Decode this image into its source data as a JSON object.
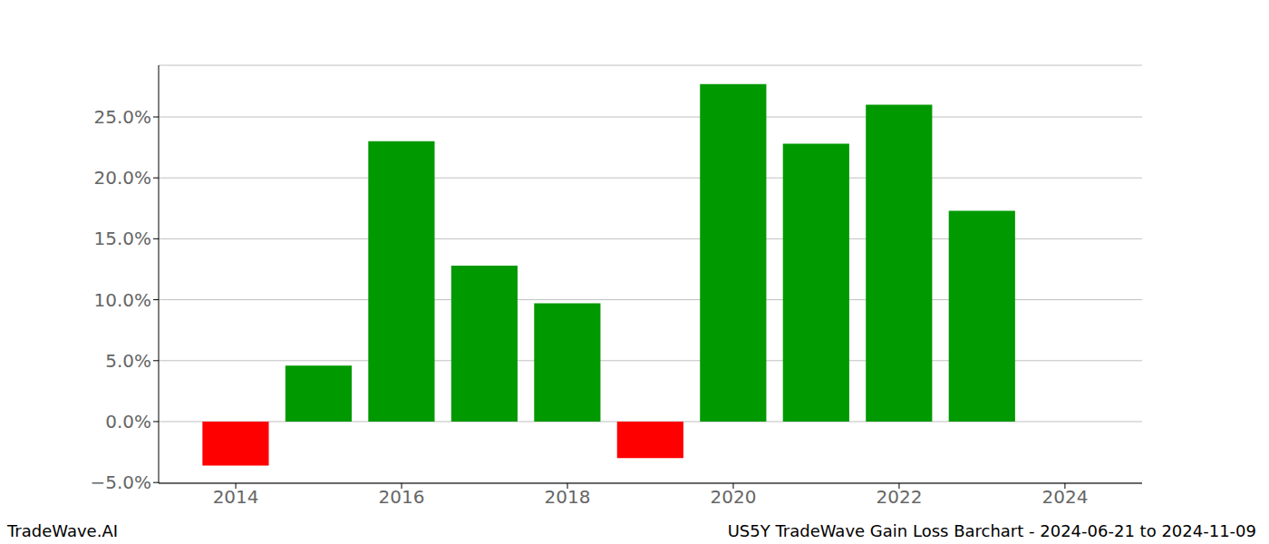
{
  "chart_data": {
    "type": "bar",
    "title": "US5Y TradeWave Gain Loss Barchart - 2024-06-21 to 2024-11-09",
    "annotations": [
      "TradeWave.AI"
    ],
    "x": [
      2014,
      2015,
      2016,
      2017,
      2018,
      2019,
      2020,
      2021,
      2022,
      2023
    ],
    "values": [
      -3.6,
      4.6,
      23.0,
      12.8,
      9.7,
      -3.0,
      27.7,
      22.8,
      26.0,
      17.3
    ],
    "colors": [
      "#ff0000",
      "#009900",
      "#009900",
      "#009900",
      "#009900",
      "#ff0000",
      "#009900",
      "#009900",
      "#009900",
      "#009900"
    ],
    "xlim": [
      2013.07,
      2024.93
    ],
    "xticks": [
      2014,
      2016,
      2018,
      2020,
      2022,
      2024
    ],
    "ylim": [
      -5.06,
      29.24
    ],
    "yticks": [
      {
        "value": -5,
        "label": "−5.0%"
      },
      {
        "value": 0,
        "label": "0.0%"
      },
      {
        "value": 5,
        "label": "5.0%"
      },
      {
        "value": 10,
        "label": "10.0%"
      },
      {
        "value": 15,
        "label": "15.0%"
      },
      {
        "value": 20,
        "label": "20.0%"
      },
      {
        "value": 25,
        "label": "25.0%"
      }
    ],
    "grid": true
  }
}
